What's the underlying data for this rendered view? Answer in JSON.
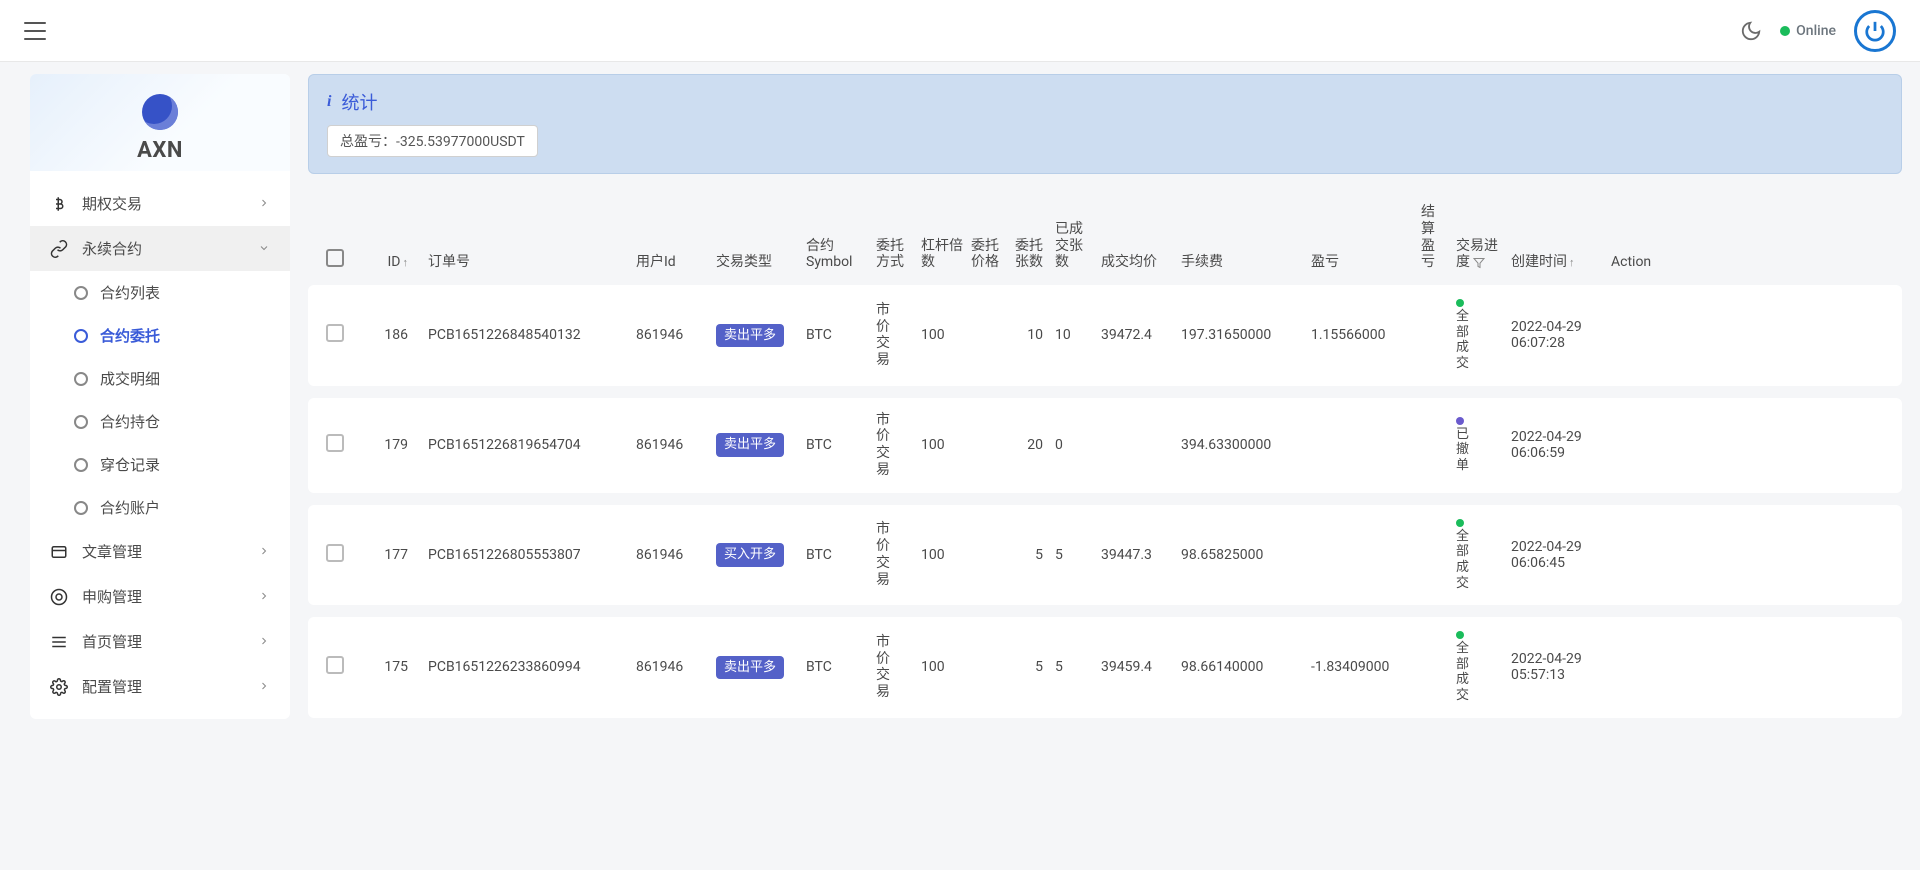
{
  "topbar": {
    "online_label": "Online"
  },
  "sidebar": {
    "logo_text": "AXN",
    "groups": [
      {
        "label": "期权交易",
        "expanded": false
      },
      {
        "label": "永续合约",
        "expanded": true,
        "items": [
          {
            "label": "合约列表",
            "active": false
          },
          {
            "label": "合约委托",
            "active": true
          },
          {
            "label": "成交明细",
            "active": false
          },
          {
            "label": "合约持仓",
            "active": false
          },
          {
            "label": "穿仓记录",
            "active": false
          },
          {
            "label": "合约账户",
            "active": false
          }
        ]
      },
      {
        "label": "文章管理",
        "expanded": false
      },
      {
        "label": "申购管理",
        "expanded": false
      },
      {
        "label": "首页管理",
        "expanded": false
      },
      {
        "label": "配置管理",
        "expanded": false
      }
    ]
  },
  "stats": {
    "title": "统计",
    "pnl_label": "总盈亏：",
    "pnl_value": "-325.53977000USDT"
  },
  "table": {
    "headers": {
      "id": "ID",
      "order_no": "订单号",
      "user_id": "用户Id",
      "trade_type": "交易类型",
      "symbol": "合约Symbol",
      "method": "委托方式",
      "leverage": "杠杆倍数",
      "entrust_price": "委托价格",
      "entrust_amount": "委托张数",
      "deal_amount": "已成交张数",
      "avg_price": "成交均价",
      "fee": "手续费",
      "pnl": "盈亏",
      "settle_pnl": "结算盈亏",
      "progress": "交易进度",
      "created": "创建时间",
      "action": "Action"
    },
    "rows": [
      {
        "id": "186",
        "order_no": "PCB1651226848540132",
        "user_id": "861946",
        "trade_type": "卖出平多",
        "trade_kind": "sell",
        "symbol": "BTC",
        "method": "市价交易",
        "leverage": "100",
        "entrust_price": "",
        "entrust_amount": "10",
        "deal_amount": "10",
        "avg_price": "39472.4",
        "fee": "197.31650000",
        "pnl": "1.15566000",
        "settle_pnl": "",
        "status": "全部成交",
        "status_color": "green",
        "created": "2022-04-29 06:07:28"
      },
      {
        "id": "179",
        "order_no": "PCB1651226819654704",
        "user_id": "861946",
        "trade_type": "卖出平多",
        "trade_kind": "sell",
        "symbol": "BTC",
        "method": "市价交易",
        "leverage": "100",
        "entrust_price": "",
        "entrust_amount": "20",
        "deal_amount": "0",
        "avg_price": "",
        "fee": "394.63300000",
        "pnl": "",
        "settle_pnl": "",
        "status": "已撤单",
        "status_color": "purple",
        "created": "2022-04-29 06:06:59"
      },
      {
        "id": "177",
        "order_no": "PCB1651226805553807",
        "user_id": "861946",
        "trade_type": "买入开多",
        "trade_kind": "buy",
        "symbol": "BTC",
        "method": "市价交易",
        "leverage": "100",
        "entrust_price": "",
        "entrust_amount": "5",
        "deal_amount": "5",
        "avg_price": "39447.3",
        "fee": "98.65825000",
        "pnl": "",
        "settle_pnl": "",
        "status": "全部成交",
        "status_color": "green",
        "created": "2022-04-29 06:06:45"
      },
      {
        "id": "175",
        "order_no": "PCB1651226233860994",
        "user_id": "861946",
        "trade_type": "卖出平多",
        "trade_kind": "sell",
        "symbol": "BTC",
        "method": "市价交易",
        "leverage": "100",
        "entrust_price": "",
        "entrust_amount": "5",
        "deal_amount": "5",
        "avg_price": "39459.4",
        "fee": "98.66140000",
        "pnl": "-1.83409000",
        "settle_pnl": "",
        "status": "全部成交",
        "status_color": "green",
        "created": "2022-04-29 05:57:13"
      }
    ]
  }
}
